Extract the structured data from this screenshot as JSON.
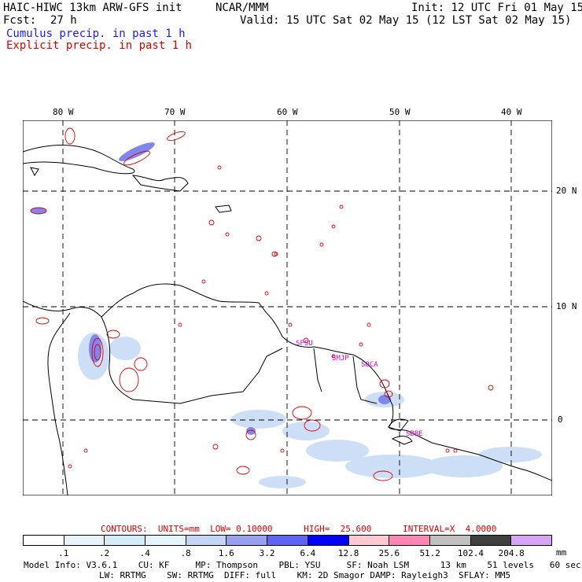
{
  "header": {
    "title": "HAIC-HIWC 13km ARW-GFS init",
    "center": "NCAR/MMM",
    "init": "Init: 12 UTC Fri 01 May 15",
    "fcst_label": "Fcst:",
    "fcst_value": "27 h",
    "valid": "Valid: 15 UTC Sat 02 May 15 (12 LST Sat 02 May 15)",
    "cumulus": "Cumulus precip. in past 1 h",
    "explicit": "Explicit precip. in past 1 h"
  },
  "map": {
    "lon_labels": [
      "80 W",
      "70 W",
      "60 W",
      "50 W",
      "40 W"
    ],
    "lat_labels": [
      "20 N",
      "10 N",
      "0"
    ],
    "stations": [
      "SFSU",
      "SMJP",
      "SOCA",
      "SBBE"
    ]
  },
  "contours": {
    "line": "CONTOURS:  UNITS=mm  LOW= 0.10000      HIGH=  25.600      INTERVAL=X  4.0000"
  },
  "colorbar": {
    "ticks": [
      ".1",
      ".2",
      ".4",
      ".8",
      "1.6",
      "3.2",
      "6.4",
      "12.8",
      "25.6",
      "51.2",
      "102.4",
      "204.8"
    ],
    "unit": "mm",
    "colors": [
      "#ffffff",
      "#e8f3fb",
      "#d4ecf7",
      "#e4f6fb",
      "#c4d6f6",
      "#9aa2f0",
      "#5f64f3",
      "#0000ff",
      "#ffc8d2",
      "#ff86b4",
      "#c0c0c0",
      "#404040",
      "#d8a4f6"
    ]
  },
  "footer": {
    "line1": "Model Info: V3.6.1    CU: KF     MP: Thompson    PBL: YSU     SF: Noah LSM      13 km    51 levels   60 sec",
    "line2": "LW: RRTMG    SW: RRTMG  DIFF: full    KM: 2D Smagor DAMP: Rayleigh3  SFLAY: MM5"
  }
}
